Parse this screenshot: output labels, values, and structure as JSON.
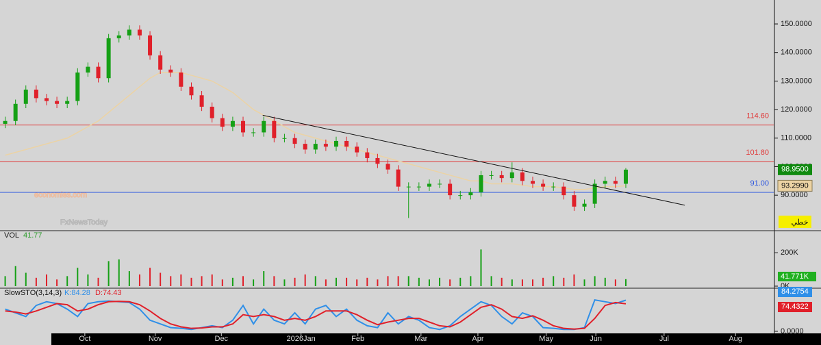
{
  "chart_data": {
    "type": "candlestick",
    "x": [
      0,
      1,
      2,
      3,
      4,
      5,
      6,
      7,
      8,
      9,
      10,
      11,
      12,
      13,
      14,
      15,
      16,
      17,
      18,
      19,
      20,
      21,
      22,
      23,
      24,
      25,
      26,
      27,
      28,
      29,
      30,
      31,
      32,
      33,
      34,
      35,
      36,
      37,
      38,
      39,
      40,
      41,
      42,
      43,
      44,
      45,
      46,
      47,
      48,
      49,
      50,
      51,
      52,
      53,
      54,
      55,
      56,
      57,
      58,
      59,
      60
    ],
    "xlim": [
      -0.5,
      74.3
    ],
    "xticks": [
      {
        "value": 7.7,
        "label": "Oct"
      },
      {
        "value": 14.5,
        "label": "Nov"
      },
      {
        "value": 20.9,
        "label": "Dec"
      },
      {
        "value": 28.6,
        "label": "2026Jan"
      },
      {
        "value": 34.1,
        "label": "Feb"
      },
      {
        "value": 40.2,
        "label": "Mar"
      },
      {
        "value": 45.7,
        "label": "Apr"
      },
      {
        "value": 52.3,
        "label": "May"
      },
      {
        "value": 57.1,
        "label": "Jun"
      },
      {
        "value": 63.7,
        "label": "Jul"
      },
      {
        "value": 70.6,
        "label": "Aug"
      }
    ],
    "ylim": [
      77.8,
      158.4
    ],
    "yticks": [
      {
        "value": 90,
        "label": "90.0000"
      },
      {
        "value": 100,
        "label": "100.0000"
      },
      {
        "value": 110,
        "label": "110.0000"
      },
      {
        "value": 120,
        "label": "120.0000"
      },
      {
        "value": 130,
        "label": "130.0000"
      },
      {
        "value": 140,
        "label": "140.0000"
      },
      {
        "value": 150,
        "label": "150.0000"
      }
    ],
    "price": {
      "up_color": "#15a015",
      "down_color": "#e0202a",
      "last_label": "98.9500",
      "last_color": "#108a10",
      "open": [
        115,
        116,
        122,
        127,
        124,
        123,
        122,
        123,
        133,
        135,
        131,
        145,
        146,
        148,
        146,
        139,
        134,
        133,
        128,
        125,
        121,
        117,
        114,
        116,
        112,
        112,
        116,
        110,
        110,
        108,
        106,
        108,
        107,
        109,
        107,
        105,
        103,
        101,
        99,
        93,
        93,
        93,
        94,
        94,
        90,
        90,
        91,
        97,
        97,
        96,
        98,
        95,
        94,
        93,
        93,
        90,
        86,
        87,
        94,
        95,
        94
      ],
      "high": [
        117.5,
        123.5,
        128.5,
        128.5,
        125.5,
        124.5,
        124.5,
        134.5,
        136.5,
        136.5,
        146.5,
        147.5,
        149.5,
        149.5,
        147.5,
        140.5,
        135.5,
        134.5,
        129.5,
        126.5,
        122.5,
        118.5,
        117.5,
        117.5,
        113.5,
        117.5,
        117.5,
        111.5,
        111.5,
        109.5,
        109.5,
        109.5,
        110.5,
        110.5,
        108.5,
        106.5,
        104.5,
        102.5,
        100.5,
        94.5,
        94.5,
        95.5,
        95.5,
        95.5,
        91.5,
        92.5,
        98.5,
        98.5,
        98.5,
        101.5,
        99.5,
        96.5,
        95.5,
        94.5,
        94.5,
        91.5,
        88.5,
        95.5,
        96.5,
        96.5,
        99.5
      ],
      "low": [
        113.5,
        114.5,
        120.5,
        122.5,
        121.5,
        120.5,
        120.5,
        121.5,
        131.5,
        129.5,
        129.5,
        143.5,
        144.5,
        144.5,
        137.5,
        132.5,
        131.5,
        126.5,
        123.5,
        119.5,
        115.5,
        112.5,
        112.5,
        110.5,
        110.5,
        110.5,
        108.5,
        108.5,
        106.5,
        104.5,
        104.5,
        105.5,
        105.5,
        105.5,
        103.5,
        101.5,
        99.5,
        97.5,
        91.5,
        82,
        91.5,
        91.5,
        92.5,
        88.5,
        88.5,
        88.5,
        89.5,
        95.5,
        94.5,
        94.5,
        93.5,
        92.5,
        91.5,
        91.5,
        88.5,
        84.5,
        84.5,
        85.5,
        92.5,
        92.5,
        92.5
      ],
      "close": [
        116,
        122,
        127,
        124,
        123,
        122,
        123,
        133,
        135,
        131,
        145,
        146,
        148,
        146,
        139,
        134,
        133,
        128,
        125,
        121,
        117,
        114,
        116,
        112,
        112,
        116,
        110,
        110,
        108,
        106,
        108,
        107,
        109,
        107,
        105,
        103,
        101,
        99,
        93,
        93,
        93,
        94,
        94,
        90,
        90,
        91,
        97,
        97,
        96,
        98,
        95,
        94,
        93,
        93,
        90,
        86,
        87,
        94,
        95,
        94,
        98.95
      ]
    },
    "ma": {
      "color": "#ecd3a4",
      "last_label": "93.2990",
      "values": [
        104,
        105,
        106,
        107,
        108,
        109,
        110,
        112,
        114,
        116,
        119,
        122,
        125,
        128,
        131,
        133,
        133,
        133,
        132,
        131,
        130,
        128,
        126,
        123,
        120,
        118,
        116,
        114,
        112,
        111,
        110,
        109,
        108,
        107,
        106,
        105,
        104,
        103,
        102,
        101,
        100,
        99,
        98,
        97,
        96,
        95,
        95,
        94,
        94,
        94,
        93.5,
        93,
        93,
        93,
        92.5,
        92,
        92,
        92.5,
        93,
        93,
        93.299
      ]
    },
    "levels": [
      {
        "value": 114.6,
        "label": "114.60",
        "color": "#e03a3a"
      },
      {
        "value": 101.8,
        "label": "101.80",
        "color": "#e03a3a"
      },
      {
        "value": 91,
        "label": "91.00",
        "color": "#2a55e0"
      }
    ],
    "trendline": {
      "x": [
        24.9,
        65.7
      ],
      "y": [
        118,
        86.5
      ],
      "color": "#111111"
    },
    "watermark": [
      "economies.com",
      "FxNewsToday"
    ],
    "button": "خطي",
    "volume": {
      "title": "VOL",
      "current": "41.77",
      "last_label": "41.771K",
      "ylim": [
        0,
        320000
      ],
      "yticks": [
        {
          "value": 0,
          "label": "0K"
        },
        {
          "value": 200000,
          "label": "200K"
        }
      ],
      "values": [
        60000,
        120000,
        80000,
        50000,
        70000,
        40000,
        60000,
        110000,
        70000,
        50000,
        150000,
        160000,
        90000,
        70000,
        110000,
        80000,
        60000,
        70000,
        50000,
        60000,
        70000,
        40000,
        50000,
        60000,
        40000,
        90000,
        60000,
        40000,
        50000,
        70000,
        60000,
        40000,
        50000,
        50000,
        40000,
        50000,
        40000,
        60000,
        60000,
        60000,
        50000,
        40000,
        50000,
        40000,
        50000,
        60000,
        220000,
        60000,
        50000,
        40000,
        40000,
        40000,
        50000,
        60000,
        50000,
        70000,
        40000,
        60000,
        50000,
        40000,
        41771
      ]
    },
    "stochastic": {
      "title": "SlowSTO(3,14,3)",
      "ylim": [
        0,
        100
      ],
      "yticks": [
        {
          "value": 0,
          "label": "0.0000"
        }
      ],
      "series": [
        {
          "name": "K:84.28",
          "color": "#2f8fe8",
          "values": [
            60,
            50,
            40,
            70,
            80,
            75,
            60,
            40,
            75,
            80,
            82,
            80,
            78,
            60,
            30,
            20,
            10,
            8,
            5,
            10,
            15,
            10,
            30,
            70,
            20,
            60,
            30,
            20,
            50,
            20,
            60,
            70,
            40,
            60,
            30,
            15,
            10,
            50,
            20,
            40,
            30,
            10,
            5,
            15,
            40,
            60,
            80,
            70,
            40,
            20,
            50,
            40,
            10,
            8,
            5,
            5,
            10,
            85,
            80,
            75,
            84.2754
          ]
        },
        {
          "name": "D:74.43",
          "color": "#e0202a",
          "values": [
            55,
            52,
            47,
            55,
            65,
            75,
            72,
            55,
            60,
            72,
            80,
            81,
            80,
            72,
            55,
            35,
            20,
            12,
            8,
            9,
            12,
            12,
            20,
            45,
            40,
            45,
            40,
            30,
            35,
            30,
            40,
            55,
            55,
            55,
            45,
            30,
            18,
            25,
            30,
            35,
            35,
            25,
            15,
            12,
            25,
            45,
            65,
            72,
            60,
            40,
            35,
            42,
            30,
            15,
            8,
            6,
            8,
            35,
            70,
            78,
            74.4322
          ]
        }
      ]
    }
  }
}
